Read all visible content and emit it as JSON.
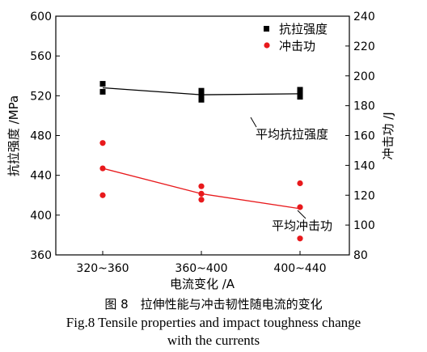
{
  "chart_data": {
    "type": "scatter",
    "categories": [
      "320~360",
      "360~400",
      "400~440"
    ],
    "xlabel": "电流变化 /A",
    "ylabel_left": "抗拉强度 /MPa",
    "ylabel_right": "冲击功 /J",
    "ylim_left": [
      360,
      600
    ],
    "yticks_left": [
      "360",
      "400",
      "440",
      "480",
      "520",
      "560",
      "600"
    ],
    "ylim_right": [
      80,
      240
    ],
    "yticks_right": [
      "80",
      "100",
      "120",
      "140",
      "160",
      "180",
      "200",
      "220",
      "240"
    ],
    "series": [
      {
        "name": "抗拉强度",
        "axis": "left",
        "color": "#000000",
        "marker": "square",
        "points": [
          {
            "x": "320~360",
            "y": 532
          },
          {
            "x": "320~360",
            "y": 524
          },
          {
            "x": "360~400",
            "y": 525
          },
          {
            "x": "360~400",
            "y": 521
          },
          {
            "x": "360~400",
            "y": 516
          },
          {
            "x": "400~440",
            "y": 526
          },
          {
            "x": "400~440",
            "y": 523
          },
          {
            "x": "400~440",
            "y": 519
          }
        ]
      },
      {
        "name": "冲击功",
        "axis": "right",
        "color": "#e8191c",
        "marker": "circle",
        "points": [
          {
            "x": "320~360",
            "y": 155
          },
          {
            "x": "320~360",
            "y": 138
          },
          {
            "x": "320~360",
            "y": 120
          },
          {
            "x": "360~400",
            "y": 126
          },
          {
            "x": "360~400",
            "y": 121
          },
          {
            "x": "360~400",
            "y": 117
          },
          {
            "x": "400~440",
            "y": 128
          },
          {
            "x": "400~440",
            "y": 112
          },
          {
            "x": "400~440",
            "y": 91
          }
        ]
      }
    ],
    "mean_lines": [
      {
        "label": "平均抗拉强度",
        "axis": "left",
        "color": "#000000",
        "values": [
          528,
          521,
          522
        ]
      },
      {
        "label": "平均冲击功",
        "axis": "right",
        "color": "#e8191c",
        "values": [
          138,
          121,
          111
        ]
      }
    ],
    "legend_position": "top-right",
    "grid": false
  },
  "caption": {
    "cn": "图 8　拉伸性能与冲击韧性随电流的变化",
    "en_line1": "Fig.8  Tensile properties and impact toughness change",
    "en_line2": "with the currents"
  }
}
